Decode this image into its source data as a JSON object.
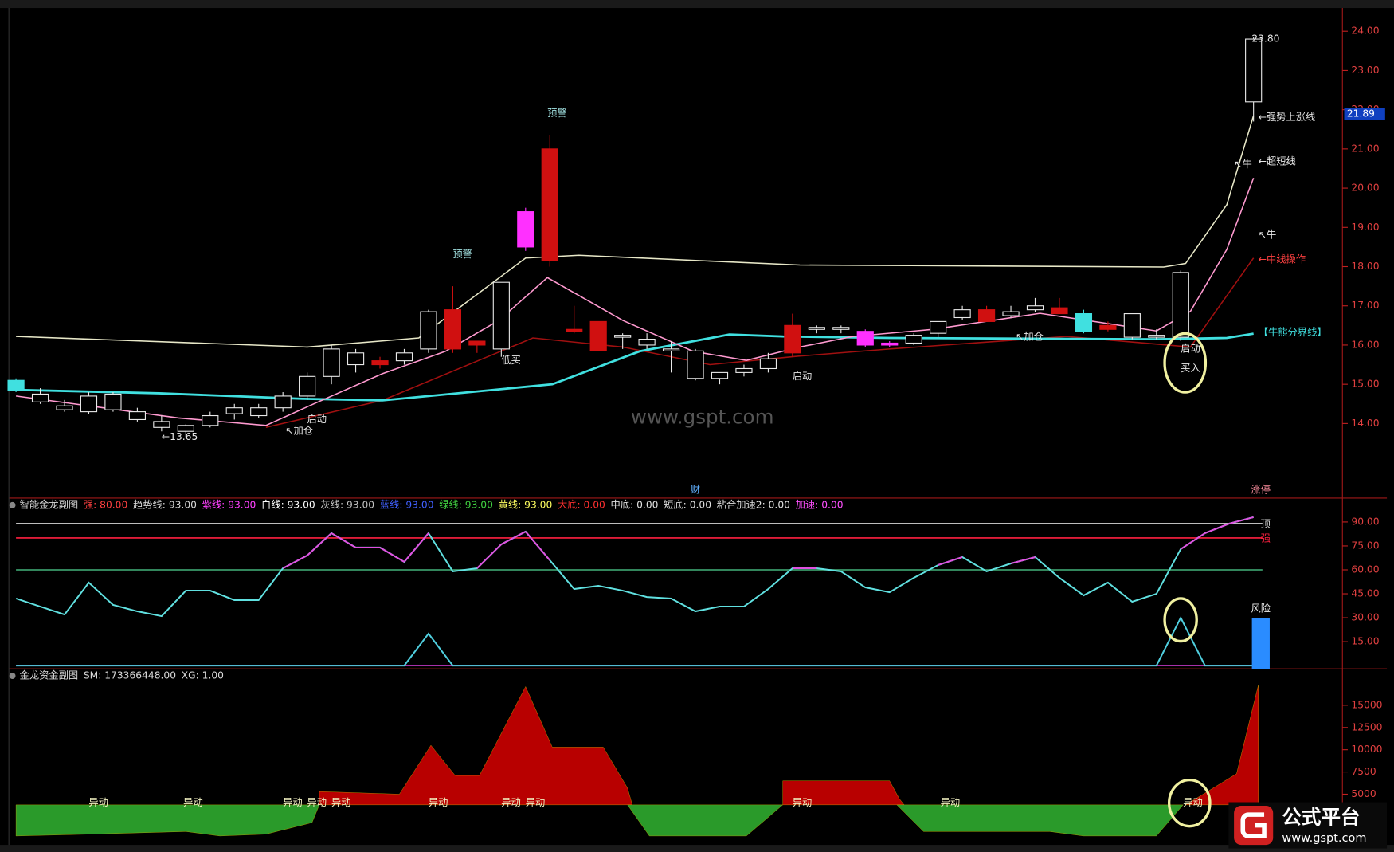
{
  "chart_data": [
    {
      "type": "candlestick",
      "xlim": [
        0,
        51
      ],
      "ylim": [
        12.1,
        24.57
      ],
      "yticks": [
        {
          "value": 14,
          "label": "14.00"
        },
        {
          "value": 15,
          "label": "15.00"
        },
        {
          "value": 16,
          "label": "16.00"
        },
        {
          "value": 17,
          "label": "17.00"
        },
        {
          "value": 18,
          "label": "18.00"
        },
        {
          "value": 19,
          "label": "19.00"
        },
        {
          "value": 20,
          "label": "20.00"
        },
        {
          "value": 21,
          "label": "21.00"
        },
        {
          "value": 22,
          "label": "22.00"
        },
        {
          "value": 23,
          "label": "23.00"
        },
        {
          "value": 24,
          "label": "24.00"
        }
      ],
      "hollow_color": "#e8e8e8",
      "open": [
        15.1,
        14.75,
        14.45,
        14.3,
        14.75,
        14.3,
        14.05,
        13.95,
        13.95,
        14.25,
        14.2,
        14.4,
        14.7,
        15.2,
        15.5,
        15.6,
        15.6,
        15.9,
        16.9,
        16.1,
        15.9,
        18.5,
        21.0,
        16.4,
        16.6,
        16.2,
        16.15,
        15.9,
        15.85,
        15.15,
        15.3,
        15.4,
        16.5,
        16.4,
        16.45,
        16.0,
        16.05,
        16.05,
        16.3,
        16.7,
        16.9,
        16.75,
        16.9,
        16.95,
        16.8,
        16.5,
        16.2,
        16.2,
        16.2,
        null,
        null,
        22.2
      ],
      "high": [
        15.15,
        14.9,
        14.6,
        14.8,
        14.8,
        14.4,
        14.2,
        13.98,
        14.3,
        14.5,
        14.5,
        14.8,
        15.3,
        16.0,
        15.9,
        15.7,
        15.9,
        16.9,
        17.5,
        16.1,
        17.6,
        19.5,
        21.35,
        17.0,
        16.6,
        16.3,
        16.3,
        16.1,
        15.9,
        15.3,
        15.5,
        15.8,
        16.8,
        16.5,
        16.5,
        16.4,
        16.1,
        16.3,
        16.6,
        17.0,
        17.0,
        17.0,
        17.2,
        17.2,
        16.9,
        16.6,
        16.8,
        16.4,
        17.9,
        null,
        null,
        23.85
      ],
      "low": [
        14.8,
        14.5,
        14.3,
        14.25,
        14.3,
        14.05,
        13.8,
        13.65,
        13.9,
        14.1,
        14.15,
        14.3,
        14.6,
        15.0,
        15.3,
        15.4,
        15.5,
        15.8,
        15.8,
        15.8,
        15.7,
        18.4,
        18.0,
        16.3,
        15.85,
        15.9,
        15.9,
        15.3,
        15.1,
        15.0,
        15.2,
        15.3,
        15.7,
        16.3,
        16.3,
        15.95,
        15.95,
        16.0,
        16.2,
        16.65,
        16.6,
        16.7,
        16.85,
        16.8,
        16.3,
        16.35,
        16.15,
        16.15,
        16.1,
        null,
        null,
        21.7
      ],
      "close": [
        14.85,
        14.55,
        14.35,
        14.7,
        14.35,
        14.1,
        13.9,
        13.8,
        14.2,
        14.4,
        14.4,
        14.7,
        15.2,
        15.9,
        15.8,
        15.5,
        15.8,
        16.85,
        15.9,
        16.0,
        17.6,
        19.4,
        18.15,
        16.35,
        15.85,
        16.25,
        16.0,
        15.85,
        15.15,
        15.3,
        15.4,
        15.65,
        15.8,
        16.45,
        16.4,
        16.35,
        16.0,
        16.25,
        16.6,
        16.9,
        16.6,
        16.85,
        17.0,
        16.8,
        16.35,
        16.4,
        16.8,
        16.25,
        17.85,
        null,
        null,
        23.8
      ],
      "colors": [
        "#40e0e0",
        "#e8e8e8",
        "#e8e8e8",
        "#e8e8e8",
        "#e8e8e8",
        "#e8e8e8",
        "#e8e8e8",
        "#e8e8e8",
        "#e8e8e8",
        "#e8e8e8",
        "#e8e8e8",
        "#e8e8e8",
        "#e8e8e8",
        "#e8e8e8",
        "#e8e8e8",
        "#d01010",
        "#e8e8e8",
        "#e8e8e8",
        "#d01010",
        "#d01010",
        "#e8e8e8",
        "#ff30ff",
        "#d01010",
        "#d01010",
        "#d01010",
        "#e8e8e8",
        "#e8e8e8",
        "#e8e8e8",
        "#e8e8e8",
        "#e8e8e8",
        "#e8e8e8",
        "#e8e8e8",
        "#d01010",
        "#e8e8e8",
        "#e8e8e8",
        "#ff30ff",
        "#ff30ff",
        "#e8e8e8",
        "#e8e8e8",
        "#e8e8e8",
        "#d01010",
        "#e8e8e8",
        "#e8e8e8",
        "#d01010",
        "#40e0e0",
        "#d01010",
        "#e8e8e8",
        "#e8e8e8",
        "#e8e8e8",
        null,
        null,
        "#e8e8e8"
      ],
      "lines": [
        {
          "color": "#e8e8c8",
          "x": [
            0,
            12,
            16.6,
            21,
            23.2,
            32.3,
            47.3,
            48.2,
            49.9,
            51
          ],
          "values": [
            16.22,
            15.95,
            16.18,
            18.22,
            18.29,
            18.04,
            17.99,
            18.08,
            19.58,
            21.85
          ]
        },
        {
          "color": "#a01010",
          "x": [
            10.3,
            15.1,
            21.3,
            25,
            28.6,
            32.3,
            36,
            43.3,
            48.4,
            51
          ],
          "values": [
            13.9,
            14.59,
            16.18,
            15.95,
            15.5,
            15.72,
            15.9,
            16.22,
            15.95,
            18.22
          ]
        },
        {
          "color": "#40e0e0",
          "x": [
            0,
            5.9,
            11.8,
            15.1,
            22.1,
            25.7,
            29.4,
            31.6,
            36,
            47,
            49.9,
            51
          ],
          "values": [
            14.86,
            14.77,
            14.63,
            14.59,
            15.0,
            15.84,
            16.27,
            16.22,
            16.18,
            16.15,
            16.18,
            16.29
          ]
        },
        {
          "color": "#ff9ad0",
          "x": [
            0,
            6.7,
            10.3,
            12.2,
            15.1,
            17.7,
            19.9,
            21.9,
            25,
            27.9,
            30.1,
            32.3,
            34.5,
            37.8,
            42.2,
            47,
            48.4,
            49.9,
            51
          ],
          "values": [
            14.7,
            14.14,
            13.95,
            14.48,
            15.27,
            15.84,
            16.63,
            17.72,
            16.63,
            15.84,
            15.61,
            15.95,
            16.22,
            16.4,
            16.81,
            16.36,
            16.86,
            18.44,
            20.26
          ]
        }
      ],
      "annotations": [
        {
          "text": "预警",
          "x": 18.4,
          "y": 18.3,
          "color": "#a0e0e0"
        },
        {
          "text": "预警",
          "x": 22.3,
          "y": 21.9,
          "color": "#a0e0e0"
        },
        {
          "text": "低买",
          "x": 20.4,
          "y": 15.6,
          "color": "#e8e8e8"
        },
        {
          "text": "启动",
          "x": 12.4,
          "y": 14.1,
          "color": "#e8e8e8"
        },
        {
          "text": "↖加仓",
          "x": 11.1,
          "y": 13.8,
          "color": "#e8e8e8"
        },
        {
          "text": "←13.65",
          "x": 6,
          "y": 13.65,
          "color": "#e8e8e8"
        },
        {
          "text": "启动",
          "x": 32.4,
          "y": 15.2,
          "color": "#e8e8e8"
        },
        {
          "text": "↖加仓",
          "x": 41.2,
          "y": 16.2,
          "color": "#e8e8e8"
        },
        {
          "text": "启动",
          "x": 48.4,
          "y": 15.9,
          "color": "#e8e8e8"
        },
        {
          "text": "买入",
          "x": 48.4,
          "y": 15.4,
          "color": "#e8e8e8"
        },
        {
          "text": "23.80",
          "x": 51.5,
          "y": 23.8,
          "color": "#e8e8e8"
        },
        {
          "text": "←强势上涨线",
          "x": 51.2,
          "y": 21.8,
          "color": "#e8e8e8"
        },
        {
          "text": "↖牛",
          "x": 50.2,
          "y": 20.6,
          "color": "#e8e8e8"
        },
        {
          "text": "←超短线",
          "x": 51.2,
          "y": 20.67,
          "color": "#e8e8e8"
        },
        {
          "text": "↖牛",
          "x": 51.2,
          "y": 18.8,
          "color": "#e8e8e8"
        },
        {
          "text": "←中线操作",
          "x": 51.2,
          "y": 18.17,
          "color": "#ff4040"
        },
        {
          "text": "【牛熊分界线】",
          "x": 51.2,
          "y": 16.31,
          "color": "#40e0e0"
        },
        {
          "text": "财",
          "x": 28,
          "y": 12.3,
          "color": "#60b0ff"
        },
        {
          "text": "涨停",
          "x": 51.3,
          "y": 12.3,
          "color": "#ff90a0"
        }
      ],
      "last_price": {
        "value": 21.89,
        "label": "21.89"
      }
    },
    {
      "type": "line",
      "title": "智能金龙副图",
      "legend": [
        {
          "text": "强: 80.00",
          "color": "#ff4040"
        },
        {
          "text": "趋势线: 93.00",
          "color": "#d8d8d8"
        },
        {
          "text": "紫线: 93.00",
          "color": "#ff40ff"
        },
        {
          "text": "白线: 93.00",
          "color": "#ffffff"
        },
        {
          "text": "灰线: 93.00",
          "color": "#c0c0c0"
        },
        {
          "text": "蓝线: 93.00",
          "color": "#4060ff"
        },
        {
          "text": "绿线: 93.00",
          "color": "#40d040"
        },
        {
          "text": "黄线: 93.00",
          "color": "#ffff60"
        },
        {
          "text": "大底: 0.00",
          "color": "#ff3030"
        },
        {
          "text": "中底: 0.00",
          "color": "#e0e0e0"
        },
        {
          "text": "短底: 0.00",
          "color": "#e0e0e0"
        },
        {
          "text": "粘合加速2: 0.00",
          "color": "#e0e0e0"
        },
        {
          "text": "加速: 0.00",
          "color": "#ff50ff"
        }
      ],
      "xlim": [
        0,
        51
      ],
      "ylim": [
        -2,
        105
      ],
      "yticks": [
        {
          "value": 15,
          "label": "15.00"
        },
        {
          "value": 30,
          "label": "30.00"
        },
        {
          "value": 45,
          "label": "45.00"
        },
        {
          "value": 60,
          "label": "60.00"
        },
        {
          "value": 75,
          "label": "75.00"
        },
        {
          "value": 90,
          "label": "90.00"
        }
      ],
      "hlines": [
        {
          "value": 89,
          "color": "#d8d8d8",
          "label": "顶"
        },
        {
          "value": 80,
          "color": "#ff2040",
          "label": "强"
        },
        {
          "value": 60,
          "color": "#3a9a6a"
        },
        {
          "value": 0,
          "color": "#e040e0"
        }
      ],
      "series": [
        {
          "color": "#60e0e0",
          "highlight_color": "#e050e0",
          "values": [
            42,
            37,
            32,
            52,
            38,
            34,
            31,
            47,
            47,
            41,
            41,
            61,
            69,
            83,
            74,
            74,
            65,
            83,
            59,
            61,
            76,
            84,
            66,
            48,
            50,
            47,
            43,
            42,
            34,
            37,
            37,
            48,
            61,
            61,
            59,
            49,
            46,
            55,
            63,
            68,
            59,
            64,
            68,
            55,
            44,
            52,
            40,
            45,
            73,
            83,
            89,
            93
          ]
        },
        {
          "color": "#50d0e0",
          "x": [
            0,
            16,
            17,
            18,
            47,
            48,
            49,
            51
          ],
          "values": [
            0,
            0,
            20,
            0,
            0,
            30,
            0,
            0
          ]
        }
      ],
      "bars": {
        "color": "#2a8cff",
        "label": "风险",
        "x": [
          51.3
        ],
        "values": [
          30
        ]
      }
    },
    {
      "type": "area",
      "title": "金龙资金副图",
      "legend": [
        {
          "text": "SM: 173366448.00",
          "color": "#d8d8d8"
        },
        {
          "text": "XG: 1.00",
          "color": "#d8d8d8"
        }
      ],
      "xlim": [
        0,
        51
      ],
      "ylim": [
        -700,
        19100
      ],
      "yticks": [
        5000,
        7500,
        10000,
        12500,
        15000
      ],
      "series": [
        {
          "color": "#b80000",
          "x": [
            12.5,
            12.5,
            15.8,
            17.1,
            18.1,
            19.1,
            21,
            22.1,
            24.2,
            25.2,
            25.4,
            25.5,
            31.6,
            31.6,
            36,
            36.4,
            36.6,
            37,
            48.2,
            50.3,
            51.2,
            51.2
          ],
          "values": [
            3800,
            5300,
            5000,
            10500,
            7100,
            7100,
            17100,
            10300,
            10300,
            5700,
            3800,
            null,
            3800,
            6500,
            6500,
            4500,
            3800,
            null,
            3800,
            7300,
            17300,
            3800
          ]
        },
        {
          "color": "#2a9a2a",
          "x": [
            0,
            0,
            3,
            7,
            8.4,
            10.3,
            12.2,
            12.5,
            12.6,
            25.2,
            26.1,
            30.1,
            31.6,
            31.7,
            36.3,
            37.4,
            42.6,
            44,
            47,
            48.1
          ],
          "values": [
            3800,
            300,
            500,
            800,
            300,
            500,
            1800,
            3800,
            null,
            3800,
            300,
            300,
            3800,
            null,
            3800,
            800,
            800,
            300,
            300,
            3800
          ]
        }
      ],
      "annotations": [
        {
          "text": "异动",
          "x": 3.4,
          "y": 4000
        },
        {
          "text": "异动",
          "x": 7.3,
          "y": 4000
        },
        {
          "text": "异动",
          "x": 11.4,
          "y": 4000
        },
        {
          "text": "异动",
          "x": 12.4,
          "y": 4000
        },
        {
          "text": "异动",
          "x": 13.4,
          "y": 4000
        },
        {
          "text": "异动",
          "x": 17.4,
          "y": 4000
        },
        {
          "text": "异动",
          "x": 20.4,
          "y": 4000
        },
        {
          "text": "异动",
          "x": 21.4,
          "y": 4000
        },
        {
          "text": "异动",
          "x": 32.4,
          "y": 4000
        },
        {
          "text": "异动",
          "x": 38.5,
          "y": 4000
        },
        {
          "text": "异动",
          "x": 48.5,
          "y": 4000
        }
      ]
    }
  ],
  "watermark": "www.gspt.com",
  "logo": {
    "name": "公式平台",
    "url": "www.gspt.com"
  }
}
